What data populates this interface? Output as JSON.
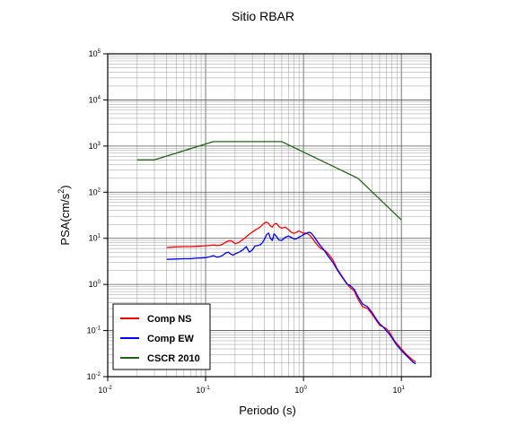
{
  "chart_data": {
    "type": "line",
    "title": "Sitio RBAR",
    "xlabel": "Periodo (s)",
    "ylabel": "PSA(cm/s²)",
    "ylabel_base": "PSA(cm/s",
    "ylabel_sup": "2",
    "ylabel_end": ")",
    "x_scale": "log",
    "y_scale": "log",
    "xlim": [
      0.01,
      20
    ],
    "ylim": [
      0.01,
      100000
    ],
    "grid": true,
    "legend_position": "bottom-left",
    "x_ticks": [
      {
        "base": "10",
        "exp": "-2",
        "value": 0.01
      },
      {
        "base": "10",
        "exp": "-1",
        "value": 0.1
      },
      {
        "base": "10",
        "exp": "0",
        "value": 1
      },
      {
        "base": "10",
        "exp": "1",
        "value": 10
      }
    ],
    "y_ticks": [
      {
        "base": "10",
        "exp": "-2",
        "value": 0.01
      },
      {
        "base": "10",
        "exp": "-1",
        "value": 0.1
      },
      {
        "base": "10",
        "exp": "0",
        "value": 1
      },
      {
        "base": "10",
        "exp": "1",
        "value": 10
      },
      {
        "base": "10",
        "exp": "2",
        "value": 100
      },
      {
        "base": "10",
        "exp": "3",
        "value": 1000
      },
      {
        "base": "10",
        "exp": "4",
        "value": 10000
      },
      {
        "base": "10",
        "exp": "5",
        "value": 100000
      }
    ],
    "series": [
      {
        "name": "Comp NS",
        "color": "#ff0000",
        "x": [
          0.04,
          0.05,
          0.06,
          0.07,
          0.08,
          0.09,
          0.1,
          0.11,
          0.12,
          0.13,
          0.14,
          0.15,
          0.16,
          0.17,
          0.18,
          0.19,
          0.2,
          0.22,
          0.24,
          0.26,
          0.28,
          0.3,
          0.32,
          0.34,
          0.36,
          0.38,
          0.4,
          0.42,
          0.44,
          0.46,
          0.48,
          0.5,
          0.53,
          0.56,
          0.6,
          0.65,
          0.7,
          0.75,
          0.8,
          0.85,
          0.9,
          0.95,
          1.0,
          1.05,
          1.1,
          1.15,
          1.2,
          1.3,
          1.4,
          1.5,
          1.6,
          1.7,
          1.8,
          2.0,
          2.2,
          2.5,
          2.8,
          3.0,
          3.3,
          3.6,
          4.0,
          4.5,
          5.0,
          5.5,
          6.0,
          6.5,
          7.0,
          7.5,
          8.0,
          8.5,
          9.0,
          10.0,
          11.0,
          12.0,
          13.0,
          14.0
        ],
        "y": [
          6.3,
          6.5,
          6.6,
          6.6,
          6.7,
          6.8,
          6.9,
          7.0,
          7.2,
          7.0,
          7.1,
          7.5,
          8.2,
          8.7,
          8.9,
          8.4,
          7.6,
          8.2,
          9.4,
          10.8,
          12.3,
          13.6,
          15.0,
          16.1,
          17.5,
          19.5,
          21.5,
          22.5,
          21.0,
          18.5,
          17.5,
          20.0,
          21.0,
          18.0,
          16.5,
          17.5,
          15.5,
          13.5,
          12.8,
          13.5,
          14.5,
          13.5,
          12.8,
          13.0,
          12.5,
          11.8,
          10.8,
          8.5,
          7.0,
          6.0,
          5.6,
          5.2,
          4.5,
          3.4,
          2.2,
          1.45,
          1.02,
          0.85,
          0.72,
          0.48,
          0.33,
          0.3,
          0.23,
          0.17,
          0.13,
          0.12,
          0.11,
          0.095,
          0.075,
          0.06,
          0.052,
          0.04,
          0.032,
          0.027,
          0.023,
          0.021
        ]
      },
      {
        "name": "Comp EW",
        "color": "#0000ff",
        "x": [
          0.04,
          0.05,
          0.06,
          0.07,
          0.08,
          0.09,
          0.1,
          0.11,
          0.12,
          0.13,
          0.14,
          0.15,
          0.16,
          0.17,
          0.18,
          0.19,
          0.2,
          0.22,
          0.24,
          0.26,
          0.28,
          0.3,
          0.32,
          0.34,
          0.36,
          0.38,
          0.4,
          0.42,
          0.44,
          0.46,
          0.48,
          0.5,
          0.53,
          0.56,
          0.6,
          0.65,
          0.7,
          0.75,
          0.8,
          0.85,
          0.9,
          0.95,
          1.0,
          1.05,
          1.1,
          1.15,
          1.2,
          1.3,
          1.4,
          1.5,
          1.6,
          1.7,
          1.8,
          2.0,
          2.2,
          2.5,
          2.8,
          3.0,
          3.3,
          3.6,
          4.0,
          4.5,
          5.0,
          5.5,
          6.0,
          6.5,
          7.0,
          7.5,
          8.0,
          8.5,
          9.0,
          10.0,
          11.0,
          12.0,
          13.0,
          14.0
        ],
        "y": [
          3.5,
          3.55,
          3.6,
          3.6,
          3.7,
          3.75,
          3.8,
          4.0,
          4.2,
          3.9,
          4.0,
          4.3,
          4.8,
          5.0,
          4.6,
          4.3,
          4.6,
          5.0,
          5.6,
          6.6,
          5.0,
          5.6,
          6.8,
          7.0,
          7.2,
          8.0,
          9.6,
          12.0,
          13.0,
          10.0,
          9.0,
          12.5,
          11.0,
          9.2,
          9.0,
          10.5,
          11.2,
          10.5,
          9.6,
          9.8,
          10.6,
          11.2,
          12.0,
          12.5,
          13.2,
          13.5,
          13.0,
          10.5,
          8.2,
          6.8,
          5.8,
          4.8,
          4.0,
          3.0,
          2.1,
          1.4,
          1.0,
          0.95,
          0.78,
          0.55,
          0.38,
          0.33,
          0.25,
          0.18,
          0.14,
          0.12,
          0.1,
          0.085,
          0.07,
          0.057,
          0.048,
          0.037,
          0.03,
          0.025,
          0.021,
          0.019
        ]
      },
      {
        "name": "CSCR 2010",
        "color": "#1e6414",
        "x": [
          0.02,
          0.03,
          0.12,
          0.6,
          3.6,
          10.0
        ],
        "y": [
          500,
          500,
          1250,
          1250,
          200,
          25
        ]
      }
    ]
  }
}
